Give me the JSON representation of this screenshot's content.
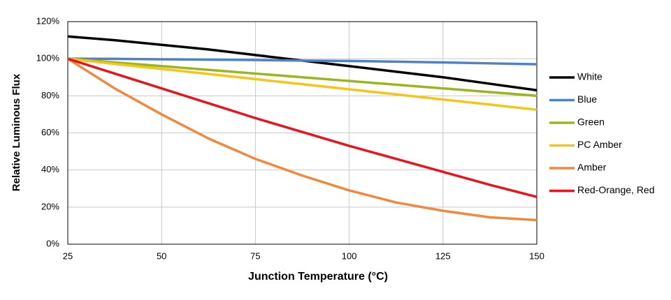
{
  "chart_data": {
    "type": "line",
    "x_label": "Junction Temperature (°C)",
    "y_label": "Relative Luminous Flux",
    "x": [
      25,
      37.5,
      50,
      62.5,
      75,
      87.5,
      100,
      112.5,
      125,
      137.5,
      150
    ],
    "series": [
      {
        "name": "White",
        "color": "#000000",
        "values": [
          112,
          110,
          107.5,
          105,
          102,
          99,
          96,
          93,
          90,
          86.5,
          83
        ]
      },
      {
        "name": "Blue",
        "color": "#4f81c7",
        "values": [
          100,
          99.9,
          99.7,
          99.5,
          99.3,
          99,
          98.8,
          98.4,
          98,
          97.5,
          97
        ]
      },
      {
        "name": "Green",
        "color": "#9bb51e",
        "values": [
          100,
          98,
          96,
          94,
          92,
          90,
          88,
          86,
          84,
          82,
          80
        ]
      },
      {
        "name": "PC Amber",
        "color": "#f5c518",
        "values": [
          100,
          97.2,
          94.5,
          91.8,
          89,
          86.3,
          83.5,
          80.8,
          78,
          75.3,
          72.5
        ]
      },
      {
        "name": "Amber",
        "color": "#f0883e",
        "values": [
          100,
          84,
          70,
          57,
          46,
          37,
          29,
          22.5,
          18,
          14.5,
          13
        ]
      },
      {
        "name": "Red-Orange, Red",
        "color": "#e8141c",
        "values": [
          100,
          92,
          84,
          76,
          68,
          60.5,
          53,
          46,
          39,
          32,
          25.5
        ]
      }
    ],
    "xlim": [
      25,
      150
    ],
    "xticks": [
      25,
      50,
      75,
      100,
      125,
      150
    ],
    "ylim": [
      0,
      120
    ],
    "yticks": [
      {
        "value": 0,
        "label": "0%"
      },
      {
        "value": 20,
        "label": "20%"
      },
      {
        "value": 40,
        "label": "40%"
      },
      {
        "value": 60,
        "label": "60%"
      },
      {
        "value": 80,
        "label": "80%"
      },
      {
        "value": 100,
        "label": "100%"
      },
      {
        "value": 120,
        "label": "120%"
      }
    ],
    "grid": true,
    "legend": "right"
  }
}
